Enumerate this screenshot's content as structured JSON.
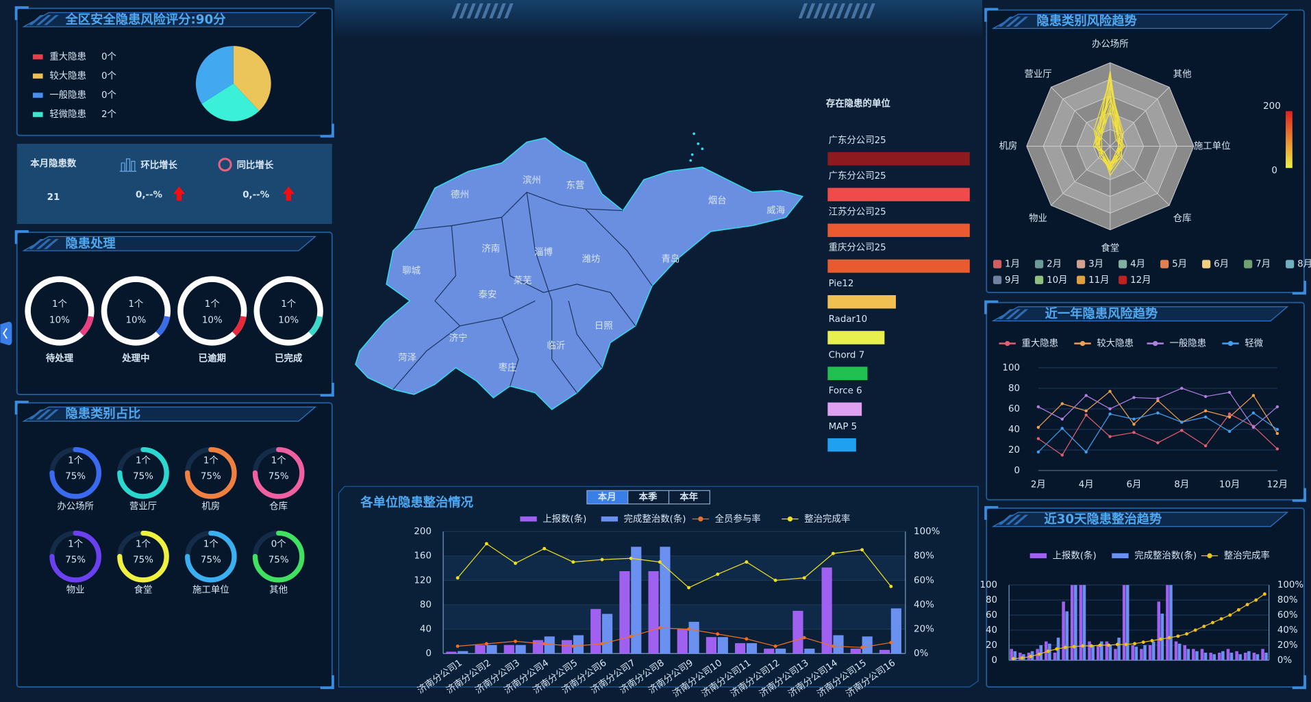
{
  "score_panel": {
    "title": "全区安全隐患风险评分:90分",
    "legend": [
      {
        "name": "重大隐患",
        "count": "0个",
        "color": "#e8404a"
      },
      {
        "name": "较大隐患",
        "count": "0个",
        "color": "#f0c050"
      },
      {
        "name": "一般隐患",
        "count": "0个",
        "color": "#4a8ff0"
      },
      {
        "name": "轻微隐患",
        "count": "2个",
        "color": "#3ae8d0"
      }
    ]
  },
  "monthly": {
    "title": "本月隐患数",
    "value": 21,
    "mom_label": "环比增长",
    "mom_value": "0,--%",
    "yoy_label": "同比增长",
    "yoy_value": "0,--%"
  },
  "handling": {
    "title": "隐患处理",
    "items": [
      {
        "count": "1个",
        "percent": 10,
        "percent_label": "10%",
        "label": "待处理",
        "color": "#ea3f80"
      },
      {
        "count": "1个",
        "percent": 10,
        "percent_label": "10%",
        "label": "处理中",
        "color": "#3a6de8"
      },
      {
        "count": "1个",
        "percent": 10,
        "percent_label": "10%",
        "label": "已逾期",
        "color": "#e82a3a"
      },
      {
        "count": "1个",
        "percent": 10,
        "percent_label": "10%",
        "label": "已完成",
        "color": "#3ad8c8"
      }
    ]
  },
  "category_share": {
    "title": "隐患类别占比",
    "items": [
      {
        "count": "1个",
        "percent": 75,
        "percent_label": "75%",
        "label": "办公场所",
        "color": "#3a6af0"
      },
      {
        "count": "1个",
        "percent": 75,
        "percent_label": "75%",
        "label": "营业厅",
        "color": "#2ad8d0"
      },
      {
        "count": "1个",
        "percent": 75,
        "percent_label": "75%",
        "label": "机房",
        "color": "#f08040"
      },
      {
        "count": "1个",
        "percent": 75,
        "percent_label": "75%",
        "label": "仓库",
        "color": "#f060a0"
      },
      {
        "count": "1个",
        "percent": 75,
        "percent_label": "75%",
        "label": "物业",
        "color": "#6a40f0"
      },
      {
        "count": "1个",
        "percent": 75,
        "percent_label": "75%",
        "label": "食堂",
        "color": "#f0f040"
      },
      {
        "count": "1个",
        "percent": 75,
        "percent_label": "75%",
        "label": "施工单位",
        "color": "#3ab0f0"
      },
      {
        "count": "0个",
        "percent": 75,
        "percent_label": "75%",
        "label": "其他",
        "color": "#40e060"
      }
    ]
  },
  "map": {
    "regions": [
      "德州",
      "滨州",
      "东营",
      "烟台",
      "威海",
      "济南",
      "淄博",
      "潍坊",
      "青岛",
      "聊城",
      "泰安",
      "莱芜",
      "济宁",
      "临沂",
      "日照",
      "菏泽",
      "枣庄"
    ]
  },
  "chart_data": [
    {
      "type": "pie",
      "values": [
        38,
        28,
        34
      ],
      "colors": [
        "#ecc55a",
        "#3af0d8",
        "#42a8f0"
      ]
    },
    {
      "type": "bar",
      "orientation": "horizontal",
      "title": "存在隐患的单位",
      "categories": [
        "广东分公司25",
        "广东分公司25",
        "江苏分公司25",
        "重庆分公司25",
        "Pie12",
        "Radar10",
        "Chord 7",
        "Force 6",
        "MAP 5"
      ],
      "values": [
        25,
        25,
        25,
        25,
        12,
        10,
        7,
        6,
        5
      ],
      "colors": [
        "#8c1a1e",
        "#f04a4a",
        "#ea5a30",
        "#ea5a30",
        "#f0c050",
        "#e8f050",
        "#22c050",
        "#e0a0f0",
        "#20a0f0"
      ]
    },
    {
      "type": "radar",
      "title": "隐患类别风险趋势",
      "indicators": [
        "办公场所",
        "其他",
        "施工单位",
        "仓库",
        "食堂",
        "物业",
        "机房",
        "营业厅"
      ],
      "visual_range": [
        0,
        200
      ],
      "line_color": "#f0e040",
      "series": [
        {
          "name": "1月",
          "color": "#d06060",
          "values": [
            180,
            30,
            20,
            25,
            40,
            20,
            30,
            40
          ]
        },
        {
          "name": "2月",
          "color": "#6a9a9a",
          "values": [
            150,
            40,
            25,
            20,
            50,
            25,
            35,
            30
          ]
        },
        {
          "name": "3月",
          "color": "#d0a090",
          "values": [
            120,
            25,
            30,
            35,
            60,
            30,
            25,
            50
          ]
        },
        {
          "name": "4月",
          "color": "#80b0a0",
          "values": [
            170,
            35,
            20,
            30,
            45,
            20,
            40,
            45
          ]
        },
        {
          "name": "5月",
          "color": "#e08050",
          "values": [
            100,
            30,
            35,
            25,
            55,
            35,
            30,
            35
          ]
        },
        {
          "name": "6月",
          "color": "#f0d080",
          "values": [
            140,
            45,
            25,
            40,
            70,
            25,
            35,
            40
          ]
        },
        {
          "name": "7月",
          "color": "#70a070",
          "values": [
            90,
            20,
            30,
            20,
            50,
            30,
            20,
            30
          ]
        },
        {
          "name": "8月",
          "color": "#70b0c0",
          "values": [
            160,
            35,
            20,
            30,
            40,
            20,
            30,
            55
          ]
        },
        {
          "name": "9月",
          "color": "#7080a0",
          "values": [
            130,
            30,
            25,
            25,
            60,
            25,
            25,
            35
          ]
        },
        {
          "name": "10月",
          "color": "#90c080",
          "values": [
            110,
            40,
            30,
            35,
            50,
            30,
            35,
            45
          ]
        },
        {
          "name": "11月",
          "color": "#e0a040",
          "values": [
            175,
            25,
            20,
            20,
            45,
            20,
            30,
            30
          ]
        },
        {
          "name": "12月",
          "color": "#c02020",
          "values": [
            80,
            30,
            25,
            30,
            55,
            25,
            25,
            40
          ]
        }
      ]
    },
    {
      "type": "line",
      "title": "近一年隐患风险趋势",
      "categories": [
        "2月",
        null,
        "4月",
        null,
        "6月",
        null,
        "8月",
        null,
        "10月",
        null,
        "12月"
      ],
      "ylim": [
        0,
        100
      ],
      "yticks": [
        0,
        20,
        40,
        60,
        80,
        100
      ],
      "series": [
        {
          "name": "重大隐患",
          "color": "#e06070",
          "values": [
            31,
            15,
            54,
            33,
            37,
            27,
            39,
            24,
            55,
            43,
            21
          ]
        },
        {
          "name": "较大隐患",
          "color": "#f0a050",
          "values": [
            42,
            65,
            58,
            77,
            45,
            68,
            47,
            58,
            52,
            73,
            36
          ]
        },
        {
          "name": "一般隐患",
          "color": "#b080e0",
          "values": [
            62,
            50,
            73,
            60,
            71,
            70,
            80,
            72,
            76,
            42,
            62
          ]
        },
        {
          "name": "轻微",
          "color": "#40a0f0",
          "values": [
            18,
            41,
            18,
            55,
            50,
            56,
            47,
            52,
            38,
            56,
            40
          ]
        }
      ]
    },
    {
      "type": "bar_line",
      "title": "各单位隐患整治情况",
      "tabs": [
        "本月",
        "本季",
        "本年"
      ],
      "active_tab": 0,
      "categories": [
        "济南分公司1",
        "济南分公司2",
        "济南分公司3",
        "济南分公司4",
        "济南分公司5",
        "济南分公司6",
        "济南分公司7",
        "济南分公司8",
        "济南分公司9",
        "济南分公司10",
        "济南分公司11",
        "济南分公司12",
        "济南分公司13",
        "济南分公司14",
        "济南分公司15",
        "济南分公司16"
      ],
      "ylim": [
        0,
        200
      ],
      "yticks": [
        0,
        40,
        80,
        120,
        160,
        200
      ],
      "y2lim": [
        0,
        100
      ],
      "y2ticks": [
        {
          "value": 0,
          "label": "0%"
        },
        {
          "value": 20,
          "label": "20%"
        },
        {
          "value": 40,
          "label": "40%"
        },
        {
          "value": 60,
          "label": "60%"
        },
        {
          "value": 80,
          "label": "80%"
        },
        {
          "value": 100,
          "label": "100%"
        }
      ],
      "series": [
        {
          "name": "上报数(条)",
          "kind": "bar",
          "color": "#a060f0",
          "values": [
            3,
            14,
            14,
            22,
            22,
            73,
            135,
            135,
            40,
            27,
            17,
            8,
            70,
            141,
            8,
            6
          ]
        },
        {
          "name": "完成整治数(条)",
          "kind": "bar",
          "color": "#6a90f0",
          "values": [
            4,
            14,
            14,
            28,
            30,
            65,
            175,
            175,
            52,
            27,
            17,
            8,
            8,
            30,
            28,
            74
          ]
        },
        {
          "name": "全员参与率",
          "kind": "line",
          "axis": "y2",
          "color": "#f07020",
          "values": [
            6,
            8,
            10,
            8,
            6,
            8,
            14,
            21,
            20,
            16,
            12,
            6,
            13,
            6,
            5,
            9
          ]
        },
        {
          "name": "整治完成率",
          "kind": "line",
          "axis": "y2",
          "color": "#f0e020",
          "values": [
            62,
            90,
            74,
            86,
            75,
            77,
            78,
            75,
            54,
            65,
            75,
            60,
            62,
            82,
            85,
            55
          ]
        }
      ]
    },
    {
      "type": "bar_line",
      "title": "近30天隐患整治趋势",
      "ylim": [
        0,
        100
      ],
      "yticks": [
        0,
        20,
        40,
        60,
        80,
        100
      ],
      "y2lim": [
        0,
        100
      ],
      "y2ticks": [
        {
          "value": 0,
          "label": "0%"
        },
        {
          "value": 20,
          "label": "20%"
        },
        {
          "value": 40,
          "label": "40%"
        },
        {
          "value": 60,
          "label": "60%"
        },
        {
          "value": 80,
          "label": "80%"
        },
        {
          "value": 100,
          "label": "100%"
        }
      ],
      "series": [
        {
          "name": "上报数(条)",
          "kind": "bar",
          "color": "#a060f0",
          "values": [
            15,
            10,
            10,
            15,
            25,
            10,
            78,
            100,
            100,
            25,
            20,
            25,
            15,
            100,
            20,
            15,
            20,
            78,
            100,
            25,
            20,
            15,
            15,
            10,
            10,
            15,
            12,
            10,
            10,
            15
          ]
        },
        {
          "name": "完成整治数(条)",
          "kind": "bar",
          "color": "#6a90f0",
          "values": [
            12,
            8,
            12,
            20,
            22,
            30,
            65,
            100,
            100,
            20,
            25,
            20,
            30,
            100,
            18,
            20,
            25,
            62,
            100,
            22,
            15,
            12,
            10,
            8,
            12,
            10,
            8,
            12,
            8,
            10
          ]
        },
        {
          "name": "整治完成率",
          "kind": "line",
          "axis": "y2",
          "color": "#f0c020",
          "values": [
            2,
            3,
            5,
            8,
            12,
            15,
            17,
            18,
            19,
            19,
            20,
            20,
            21,
            21,
            22,
            24,
            26,
            28,
            30,
            32,
            35,
            40,
            45,
            50,
            55,
            60,
            67,
            74,
            80,
            88
          ]
        }
      ]
    }
  ]
}
